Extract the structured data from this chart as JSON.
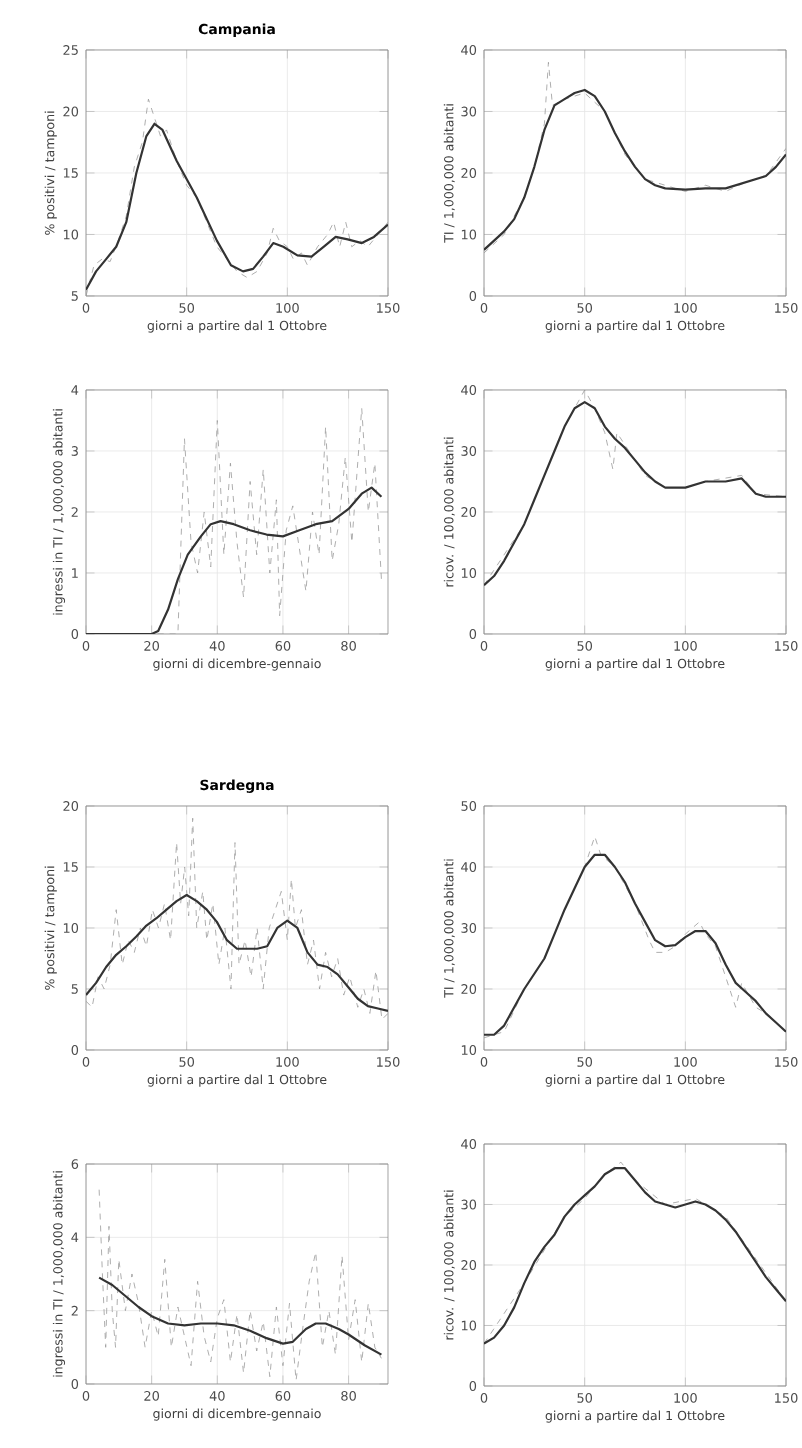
{
  "chart_data": [
    {
      "type": "line",
      "title": "Campania",
      "xlabel": "giorni a partire dal 1 Ottobre",
      "ylabel": "% positivi / tamponi",
      "xlim": [
        0,
        150
      ],
      "ylim": [
        5,
        25
      ],
      "xticks": [
        0,
        50,
        100,
        150
      ],
      "yticks": [
        5,
        10,
        15,
        20,
        25
      ],
      "grid": true,
      "marker": "none",
      "series": [
        {
          "color": "#999999",
          "line_style": "dashed",
          "x": [
            0,
            4,
            8,
            12,
            16,
            20,
            24,
            28,
            31,
            34,
            37,
            40,
            45,
            50,
            55,
            60,
            65,
            70,
            75,
            80,
            85,
            90,
            93,
            96,
            100,
            103,
            107,
            110,
            115,
            120,
            123,
            126,
            129,
            132,
            136,
            140,
            145,
            150
          ],
          "values": [
            5,
            7.5,
            8,
            7.8,
            9.5,
            11.5,
            15.5,
            17.5,
            21,
            19.5,
            18,
            18.5,
            16,
            14,
            13,
            11,
            9,
            8,
            7,
            6.5,
            7,
            8.5,
            10.5,
            9.5,
            9,
            8,
            8.5,
            7.5,
            9,
            10,
            11,
            9,
            11,
            9,
            9.5,
            9,
            10,
            11
          ]
        },
        {
          "color": "#333333",
          "line_style": "solid",
          "x": [
            0,
            5,
            10,
            15,
            20,
            25,
            30,
            34,
            38,
            45,
            55,
            65,
            72,
            78,
            83,
            88,
            93,
            98,
            105,
            112,
            118,
            124,
            130,
            137,
            143,
            150
          ],
          "values": [
            5.5,
            7,
            8,
            9,
            11,
            15,
            18,
            19,
            18.5,
            16,
            13,
            9.5,
            7.5,
            7,
            7.2,
            8.2,
            9.3,
            9,
            8.3,
            8.2,
            9,
            9.8,
            9.6,
            9.3,
            9.8,
            10.8
          ]
        }
      ]
    },
    {
      "type": "line",
      "xlabel": "giorni a partire dal 1 Ottobre",
      "ylabel": "TI / 1,000,000 abitanti",
      "xlim": [
        0,
        150
      ],
      "ylim": [
        0,
        40
      ],
      "xticks": [
        0,
        50,
        100,
        150
      ],
      "yticks": [
        0,
        10,
        20,
        30,
        40
      ],
      "grid": true,
      "marker": "none",
      "series": [
        {
          "color": "#999999",
          "line_style": "dashed",
          "x": [
            0,
            10,
            20,
            25,
            30,
            32,
            34,
            40,
            50,
            60,
            70,
            80,
            90,
            100,
            110,
            120,
            130,
            140,
            150
          ],
          "values": [
            7,
            10,
            16,
            21,
            28,
            38,
            31,
            32,
            33,
            30,
            23,
            19,
            18,
            17,
            18,
            17,
            18.5,
            19.5,
            24
          ]
        },
        {
          "color": "#333333",
          "line_style": "solid",
          "x": [
            0,
            5,
            10,
            15,
            20,
            25,
            30,
            35,
            40,
            45,
            50,
            55,
            60,
            65,
            70,
            75,
            80,
            85,
            90,
            100,
            110,
            120,
            130,
            140,
            145,
            150
          ],
          "values": [
            7.5,
            9,
            10.5,
            12.5,
            16,
            21,
            27,
            31,
            32,
            33,
            33.5,
            32.5,
            30,
            26.5,
            23.5,
            21,
            19,
            18,
            17.5,
            17.3,
            17.5,
            17.5,
            18.5,
            19.5,
            21,
            23
          ]
        }
      ]
    },
    {
      "type": "line",
      "xlabel": "giorni di dicembre-gennaio",
      "ylabel": "ingressi in TI / 1,000,000 abitanti",
      "xlim": [
        0,
        92
      ],
      "ylim": [
        0,
        4
      ],
      "xticks": [
        0,
        20,
        40,
        60,
        80
      ],
      "yticks": [
        0,
        1,
        2,
        3,
        4
      ],
      "grid": true,
      "marker": "none",
      "series": [
        {
          "color": "#999999",
          "line_style": "dashed",
          "x": [
            0,
            20,
            28,
            30,
            32,
            34,
            36,
            38,
            40,
            42,
            44,
            46,
            48,
            50,
            52,
            54,
            56,
            58,
            59,
            61,
            63,
            65,
            67,
            69,
            71,
            73,
            75,
            77,
            79,
            81,
            84,
            86,
            88,
            90
          ],
          "values": [
            0,
            0,
            0,
            3.2,
            1.5,
            1.0,
            2.0,
            1.1,
            3.5,
            1.3,
            2.8,
            1.5,
            0.6,
            2.5,
            1.3,
            2.7,
            1.0,
            2.2,
            0.3,
            1.7,
            2.1,
            1.4,
            0.7,
            2.0,
            1.3,
            3.4,
            1.2,
            1.8,
            2.9,
            1.5,
            3.7,
            2.0,
            2.8,
            0.9
          ]
        },
        {
          "color": "#333333",
          "line_style": "solid",
          "x": [
            0,
            10,
            20,
            22,
            25,
            28,
            31,
            35,
            38,
            41,
            45,
            50,
            55,
            60,
            65,
            70,
            75,
            80,
            84,
            87,
            90
          ],
          "values": [
            0,
            0,
            0,
            0.05,
            0.4,
            0.9,
            1.3,
            1.6,
            1.8,
            1.85,
            1.8,
            1.7,
            1.63,
            1.6,
            1.7,
            1.8,
            1.85,
            2.05,
            2.3,
            2.4,
            2.25
          ]
        }
      ]
    },
    {
      "type": "line",
      "xlabel": "giorni a partire dal 1 Ottobre",
      "ylabel": "ricov. / 100,000 abitanti",
      "xlim": [
        0,
        150
      ],
      "ylim": [
        0,
        40
      ],
      "xticks": [
        0,
        50,
        100,
        150
      ],
      "yticks": [
        0,
        10,
        20,
        30,
        40
      ],
      "grid": true,
      "marker": "none",
      "series": [
        {
          "color": "#999999",
          "line_style": "dashed",
          "x": [
            0,
            20,
            40,
            50,
            55,
            60,
            64,
            66,
            70,
            80,
            90,
            100,
            110,
            128,
            135,
            150
          ],
          "values": [
            8,
            18,
            34,
            40,
            37,
            33,
            27,
            33,
            31,
            26,
            24,
            24,
            25,
            26,
            23,
            22.5
          ]
        },
        {
          "color": "#333333",
          "line_style": "solid",
          "x": [
            0,
            5,
            10,
            15,
            20,
            25,
            30,
            35,
            40,
            45,
            50,
            55,
            60,
            65,
            70,
            75,
            80,
            85,
            90,
            100,
            110,
            120,
            128,
            135,
            140,
            150
          ],
          "values": [
            8,
            9.5,
            12,
            15,
            18,
            22,
            26,
            30,
            34,
            37,
            38,
            37,
            34,
            32,
            30.5,
            28.5,
            26.5,
            25,
            24,
            24,
            25,
            25,
            25.5,
            23,
            22.5,
            22.5
          ]
        }
      ]
    },
    {
      "type": "line",
      "title": "Sardegna",
      "xlabel": "giorni a partire dal 1 Ottobre",
      "ylabel": "% positivi / tamponi",
      "xlim": [
        0,
        150
      ],
      "ylim": [
        0,
        20
      ],
      "xticks": [
        0,
        50,
        100,
        150
      ],
      "yticks": [
        0,
        5,
        10,
        15,
        20
      ],
      "grid": true,
      "marker": "none",
      "series": [
        {
          "color": "#999999",
          "line_style": "dashed",
          "x": [
            0,
            3,
            6,
            9,
            12,
            15,
            18,
            21,
            24,
            27,
            30,
            33,
            36,
            39,
            42,
            45,
            47,
            49,
            51,
            53,
            55,
            58,
            60,
            63,
            66,
            69,
            72,
            74,
            76,
            79,
            82,
            85,
            88,
            91,
            94,
            97,
            100,
            102,
            104,
            107,
            110,
            113,
            116,
            119,
            122,
            125,
            128,
            131,
            135,
            138,
            141,
            144,
            147,
            150
          ],
          "values": [
            4,
            3.5,
            6,
            5,
            7,
            11.5,
            7,
            9,
            8,
            10,
            8.5,
            11.5,
            10,
            12,
            9,
            17,
            12,
            15,
            11,
            19,
            10,
            13,
            9,
            12,
            7,
            10,
            5,
            17,
            7,
            9,
            6,
            10,
            5,
            10,
            11.5,
            13,
            9,
            14,
            10,
            11.5,
            7,
            9,
            5,
            8,
            6,
            7.5,
            4.5,
            6,
            3.5,
            5,
            3,
            6.5,
            2.5,
            3
          ]
        },
        {
          "color": "#333333",
          "line_style": "solid",
          "x": [
            0,
            5,
            10,
            15,
            20,
            25,
            30,
            35,
            40,
            45,
            50,
            55,
            60,
            65,
            70,
            75,
            80,
            85,
            90,
            95,
            100,
            105,
            110,
            115,
            120,
            125,
            130,
            135,
            140,
            145,
            150
          ],
          "values": [
            4.5,
            5.5,
            6.8,
            7.8,
            8.5,
            9.3,
            10.2,
            10.8,
            11.5,
            12.2,
            12.7,
            12.2,
            11.5,
            10.5,
            9,
            8.3,
            8.3,
            8.3,
            8.5,
            10,
            10.6,
            10,
            8,
            7,
            6.8,
            6.2,
            5.2,
            4.2,
            3.6,
            3.4,
            3.2
          ]
        }
      ]
    },
    {
      "type": "line",
      "xlabel": "giorni a partire dal 1 Ottobre",
      "ylabel": "TI / 1,000,000 abitanti",
      "xlim": [
        0,
        150
      ],
      "ylim": [
        10,
        50
      ],
      "xticks": [
        0,
        50,
        100,
        150
      ],
      "yticks": [
        10,
        20,
        30,
        40,
        50
      ],
      "grid": true,
      "marker": "none",
      "series": [
        {
          "color": "#999999",
          "line_style": "dashed",
          "x": [
            0,
            10,
            20,
            30,
            40,
            50,
            55,
            58,
            65,
            75,
            82,
            85,
            90,
            95,
            100,
            107,
            110,
            115,
            120,
            125,
            128,
            135,
            140,
            150
          ],
          "values": [
            12,
            13,
            20,
            25,
            33,
            40,
            45,
            42,
            40,
            34,
            28,
            26,
            26,
            27,
            29,
            31,
            29,
            27,
            22,
            17,
            21,
            17,
            16,
            13
          ]
        },
        {
          "color": "#333333",
          "line_style": "solid",
          "x": [
            0,
            5,
            10,
            15,
            20,
            25,
            30,
            35,
            40,
            45,
            50,
            55,
            60,
            65,
            70,
            75,
            80,
            85,
            90,
            95,
            100,
            105,
            110,
            115,
            120,
            125,
            130,
            135,
            140,
            145,
            150
          ],
          "values": [
            12.5,
            12.5,
            14,
            17,
            20,
            22.5,
            25,
            29,
            33,
            36.5,
            40,
            42,
            42,
            40,
            37.5,
            34,
            31,
            28,
            27,
            27.2,
            28.5,
            29.5,
            29.5,
            27.5,
            24,
            21,
            19.5,
            18,
            16,
            14.5,
            13
          ]
        }
      ]
    },
    {
      "type": "line",
      "xlabel": "giorni di dicembre-gennaio",
      "ylabel": "ingressi in TI / 1,000,000 abitanti",
      "xlim": [
        0,
        92
      ],
      "ylim": [
        0,
        6
      ],
      "xticks": [
        0,
        20,
        40,
        60,
        80
      ],
      "yticks": [
        0,
        2,
        4,
        6
      ],
      "grid": true,
      "marker": "none",
      "series": [
        {
          "color": "#999999",
          "line_style": "dashed",
          "x": [
            4,
            5,
            6,
            7,
            8,
            9,
            10,
            12,
            14,
            16,
            18,
            20,
            22,
            24,
            26,
            28,
            30,
            32,
            34,
            36,
            38,
            40,
            42,
            44,
            46,
            48,
            50,
            52,
            54,
            56,
            58,
            60,
            62,
            64,
            66,
            68,
            70,
            72,
            74,
            76,
            78,
            80,
            82,
            84,
            86,
            88,
            90
          ],
          "values": [
            5.3,
            3,
            1,
            4.3,
            2,
            1,
            3.4,
            2,
            3,
            2.2,
            1,
            2,
            1.3,
            3.4,
            1,
            2.1,
            1.3,
            0.5,
            2.8,
            1.3,
            0.6,
            1.8,
            2.3,
            0.6,
            1.9,
            0.3,
            2.0,
            0.9,
            1.7,
            0.2,
            2.1,
            0.5,
            2.2,
            0.1,
            1.5,
            2.8,
            3.6,
            1.0,
            2.0,
            0.8,
            3.5,
            1.2,
            2.3,
            0.6,
            2.2,
            1.0,
            0.7
          ]
        },
        {
          "color": "#333333",
          "line_style": "solid",
          "x": [
            4,
            8,
            12,
            16,
            20,
            25,
            30,
            35,
            40,
            45,
            50,
            55,
            60,
            63,
            67,
            70,
            73,
            77,
            80,
            85,
            90
          ],
          "values": [
            2.9,
            2.7,
            2.4,
            2.1,
            1.85,
            1.65,
            1.6,
            1.65,
            1.65,
            1.6,
            1.45,
            1.25,
            1.1,
            1.15,
            1.5,
            1.65,
            1.65,
            1.5,
            1.35,
            1.05,
            0.8
          ]
        }
      ]
    },
    {
      "type": "line",
      "xlabel": "giorni a partire dal 1 Ottobre",
      "ylabel": "ricov. / 100,000 abitanti",
      "xlim": [
        0,
        150
      ],
      "ylim": [
        0,
        40
      ],
      "xticks": [
        0,
        50,
        100,
        150
      ],
      "yticks": [
        0,
        10,
        20,
        30,
        40
      ],
      "grid": true,
      "marker": "none",
      "series": [
        {
          "color": "#999999",
          "line_style": "dashed",
          "x": [
            0,
            20,
            40,
            50,
            60,
            68,
            75,
            90,
            105,
            120,
            150
          ],
          "values": [
            7,
            17,
            28,
            31,
            35,
            37,
            34,
            30,
            31,
            28,
            14
          ]
        },
        {
          "color": "#333333",
          "line_style": "solid",
          "x": [
            0,
            5,
            10,
            15,
            20,
            25,
            30,
            35,
            40,
            45,
            50,
            55,
            60,
            65,
            70,
            75,
            80,
            85,
            90,
            95,
            100,
            105,
            110,
            115,
            120,
            125,
            130,
            135,
            140,
            145,
            150
          ],
          "values": [
            7,
            8,
            10,
            13,
            17,
            20.5,
            23,
            25,
            28,
            30,
            31.5,
            33,
            35,
            36,
            36,
            34,
            32,
            30.5,
            30,
            29.5,
            30,
            30.5,
            30,
            29,
            27.5,
            25.5,
            23,
            20.5,
            18,
            16,
            14
          ]
        }
      ]
    }
  ]
}
